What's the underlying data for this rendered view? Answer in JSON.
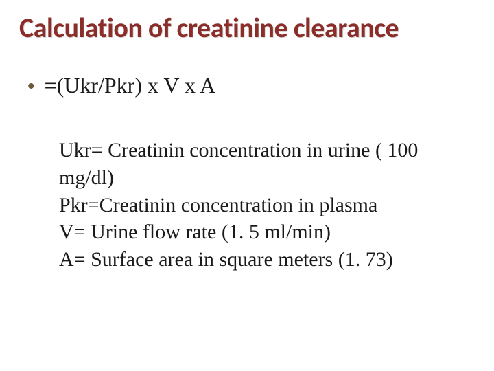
{
  "title": "Calculation of creatinine clearance",
  "bullet_char": "•",
  "formula": "=(Ukr/Pkr) x V x A",
  "defs": {
    "l1": "Ukr= Creatinin concentration in urine ( 100 mg/dl)",
    "l2": "Pkr=Creatinin concentration in plasma",
    "l3": "V= Urine flow rate (1. 5 ml/min)",
    "l4": "A= Surface area in square meters (1. 73)"
  },
  "colors": {
    "title": "#8b2e2a",
    "underline": "#888888",
    "bullet": "#6b5a3a",
    "text": "#1a1a1a",
    "background": "#ffffff"
  }
}
